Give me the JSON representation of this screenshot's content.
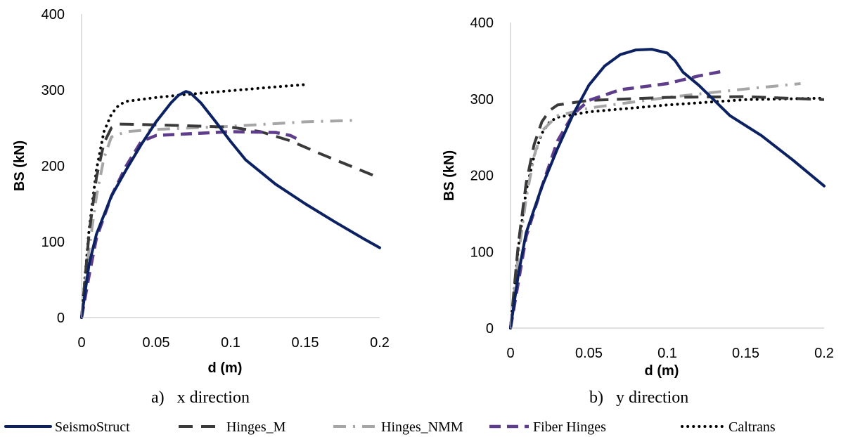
{
  "chart_data": [
    {
      "type": "line",
      "caption": "a)   x direction",
      "xlabel": "d (m)",
      "ylabel": "BS (kN)",
      "xlim": [
        0,
        0.2
      ],
      "ylim": [
        0,
        400
      ],
      "xticks": [
        "0",
        "0.05",
        "0.1",
        "0.15",
        "0.2"
      ],
      "yticks": [
        "0",
        "100",
        "200",
        "300",
        "400"
      ],
      "grid": false,
      "series": [
        {
          "name": "SeismoStruct",
          "color": "#0b2162",
          "x": [
            0,
            0.005,
            0.01,
            0.02,
            0.03,
            0.04,
            0.05,
            0.06,
            0.065,
            0.07,
            0.073,
            0.08,
            0.09,
            0.1,
            0.11,
            0.13,
            0.15,
            0.17,
            0.19,
            0.2
          ],
          "y": [
            0,
            70,
            110,
            160,
            195,
            228,
            258,
            283,
            293,
            298,
            296,
            283,
            258,
            232,
            208,
            176,
            150,
            126,
            103,
            92
          ]
        },
        {
          "name": "Hinges_M",
          "color": "#3a3a3a",
          "x": [
            0,
            0.005,
            0.01,
            0.015,
            0.02,
            0.025,
            0.05,
            0.1,
            0.12,
            0.14,
            0.16,
            0.18,
            0.2
          ],
          "y": [
            0,
            110,
            185,
            230,
            250,
            255,
            254,
            251,
            245,
            233,
            216,
            200,
            184
          ]
        },
        {
          "name": "Hinges_NMM",
          "color": "#a6a6a6",
          "x": [
            0,
            0.005,
            0.01,
            0.015,
            0.02,
            0.03,
            0.05,
            0.1,
            0.15,
            0.185
          ],
          "y": [
            0,
            90,
            160,
            210,
            238,
            245,
            248,
            252,
            258,
            260
          ]
        },
        {
          "name": "Fiber Hinges",
          "color": "#5e3d8c",
          "x": [
            0,
            0.005,
            0.01,
            0.02,
            0.03,
            0.04,
            0.05,
            0.08,
            0.1,
            0.13,
            0.14,
            0.145
          ],
          "y": [
            0,
            55,
            105,
            160,
            200,
            232,
            240,
            243,
            245,
            244,
            240,
            235
          ]
        },
        {
          "name": "Caltrans",
          "color": "#000000",
          "x": [
            0,
            0.005,
            0.01,
            0.015,
            0.02,
            0.025,
            0.03,
            0.05,
            0.07,
            0.1,
            0.13,
            0.15
          ],
          "y": [
            0,
            115,
            195,
            245,
            268,
            280,
            285,
            290,
            294,
            299,
            304,
            307
          ]
        }
      ]
    },
    {
      "type": "line",
      "caption": "b)   y direction",
      "xlabel": "d (m)",
      "ylabel": "BS (kN)",
      "xlim": [
        0,
        0.2
      ],
      "ylim": [
        0,
        400
      ],
      "xticks": [
        "0",
        "0.05",
        "0.1",
        "0.15",
        "0.2"
      ],
      "yticks": [
        "0",
        "100",
        "200",
        "300",
        "400"
      ],
      "grid": false,
      "series": [
        {
          "name": "SeismoStruct",
          "color": "#0b2162",
          "x": [
            0,
            0.005,
            0.01,
            0.02,
            0.03,
            0.04,
            0.05,
            0.06,
            0.07,
            0.08,
            0.09,
            0.1,
            0.105,
            0.11,
            0.12,
            0.13,
            0.14,
            0.16,
            0.18,
            0.2
          ],
          "y": [
            0,
            70,
            125,
            185,
            235,
            280,
            318,
            343,
            358,
            364,
            365,
            360,
            350,
            335,
            318,
            298,
            278,
            252,
            220,
            186
          ]
        },
        {
          "name": "Hinges_M",
          "color": "#3a3a3a",
          "x": [
            0,
            0.005,
            0.01,
            0.015,
            0.02,
            0.025,
            0.03,
            0.05,
            0.1,
            0.15,
            0.2
          ],
          "y": [
            0,
            110,
            190,
            240,
            270,
            285,
            292,
            298,
            302,
            303,
            299
          ]
        },
        {
          "name": "Hinges_NMM",
          "color": "#a6a6a6",
          "x": [
            0,
            0.005,
            0.01,
            0.015,
            0.02,
            0.03,
            0.05,
            0.1,
            0.15,
            0.185
          ],
          "y": [
            0,
            95,
            170,
            225,
            258,
            278,
            288,
            302,
            313,
            320
          ]
        },
        {
          "name": "Fiber Hinges",
          "color": "#5e3d8c",
          "x": [
            0,
            0.005,
            0.01,
            0.02,
            0.03,
            0.04,
            0.05,
            0.07,
            0.1,
            0.12,
            0.135
          ],
          "y": [
            0,
            60,
            120,
            185,
            245,
            280,
            298,
            312,
            320,
            330,
            336
          ]
        },
        {
          "name": "Caltrans",
          "color": "#000000",
          "x": [
            0,
            0.005,
            0.01,
            0.015,
            0.02,
            0.025,
            0.03,
            0.05,
            0.1,
            0.15,
            0.2
          ],
          "y": [
            0,
            105,
            180,
            225,
            255,
            270,
            276,
            283,
            292,
            299,
            301
          ]
        }
      ]
    }
  ],
  "legend": [
    {
      "name": "SeismoStruct"
    },
    {
      "name": "Hinges_M"
    },
    {
      "name": "Hinges_NMM"
    },
    {
      "name": "Fiber Hinges"
    },
    {
      "name": "Caltrans"
    }
  ]
}
